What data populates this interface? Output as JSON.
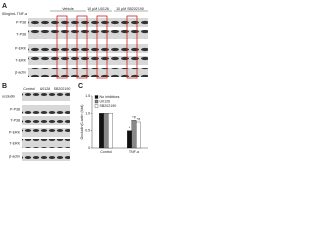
{
  "panel_a": {
    "label": "A",
    "treatment": "50ng/mL TNF-α",
    "groups": [
      "Vehicle",
      "10 μM U0126",
      "10 μM SB202190"
    ],
    "rows": [
      "P-P38",
      "T-P38",
      "P-ERK",
      "T-ERK",
      "β-actin"
    ]
  },
  "panel_b": {
    "label": "B",
    "columns": [
      "Control",
      "U0126",
      "SB202190"
    ],
    "rows": [
      "occludin",
      "P-P38",
      "T-P38",
      "P-ERK",
      "T-ERK",
      "β-actin"
    ]
  },
  "panel_c": {
    "label": "C",
    "chart_data": {
      "type": "bar",
      "ylabel": "Occludin/β-actin (fold)",
      "categories": [
        "Control",
        "TNF-α"
      ],
      "series": [
        {
          "name": "No inhibitors",
          "color": "#111111",
          "values": [
            1.0,
            0.5
          ]
        },
        {
          "name": "U0126",
          "color": "#888888",
          "values": [
            1.0,
            0.8
          ]
        },
        {
          "name": "SB202190",
          "color": "#ffffff",
          "values": [
            1.0,
            0.75
          ]
        }
      ],
      "annotations": [
        "*",
        "*#",
        "*#"
      ],
      "ylim": [
        0,
        1.5
      ],
      "yticks": [
        0,
        0.5,
        {
          "value": 1,
          "label": "1.0"
        },
        1.5
      ]
    }
  }
}
